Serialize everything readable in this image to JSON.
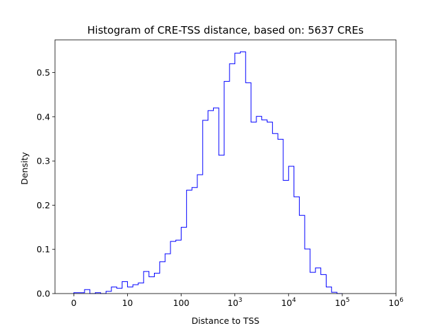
{
  "chart_data": {
    "type": "histogram",
    "title": "Histogram of CRE-TSS distance, based on: 5637 CREs",
    "xlabel": "Distance to TSS",
    "ylabel": "Density",
    "x_scale": "symlog",
    "xlim": [
      -0.35,
      6
    ],
    "ylim": [
      0,
      0.574
    ],
    "x_ticks": [
      {
        "value": 0,
        "base": "0",
        "exp": ""
      },
      {
        "value": 1,
        "base": "10",
        "exp": ""
      },
      {
        "value": 2,
        "base": "100",
        "exp": ""
      },
      {
        "value": 3,
        "base": "10",
        "exp": "3"
      },
      {
        "value": 4,
        "base": "10",
        "exp": "4"
      },
      {
        "value": 5,
        "base": "10",
        "exp": "5"
      },
      {
        "value": 6,
        "base": "10",
        "exp": "6"
      }
    ],
    "y_ticks": [
      {
        "value": 0.0,
        "label": "0.0"
      },
      {
        "value": 0.1,
        "label": "0.1"
      },
      {
        "value": 0.2,
        "label": "0.2"
      },
      {
        "value": 0.3,
        "label": "0.3"
      },
      {
        "value": 0.4,
        "label": "0.4"
      },
      {
        "value": 0.5,
        "label": "0.5"
      }
    ],
    "bin_width_decades": 0.1,
    "bin_start": 0,
    "densities": [
      0.002,
      0.002,
      0.009,
      0.0,
      0.002,
      0.0,
      0.005,
      0.015,
      0.012,
      0.027,
      0.015,
      0.02,
      0.024,
      0.05,
      0.038,
      0.046,
      0.072,
      0.09,
      0.118,
      0.121,
      0.15,
      0.234,
      0.24,
      0.269,
      0.392,
      0.414,
      0.42,
      0.313,
      0.48,
      0.52,
      0.544,
      0.547,
      0.477,
      0.388,
      0.401,
      0.393,
      0.388,
      0.362,
      0.349,
      0.256,
      0.288,
      0.219,
      0.177,
      0.101,
      0.048,
      0.058,
      0.043,
      0.015,
      0.003,
      0.0
    ],
    "grid": false,
    "legend": "none",
    "line_color": "#0000ff"
  }
}
